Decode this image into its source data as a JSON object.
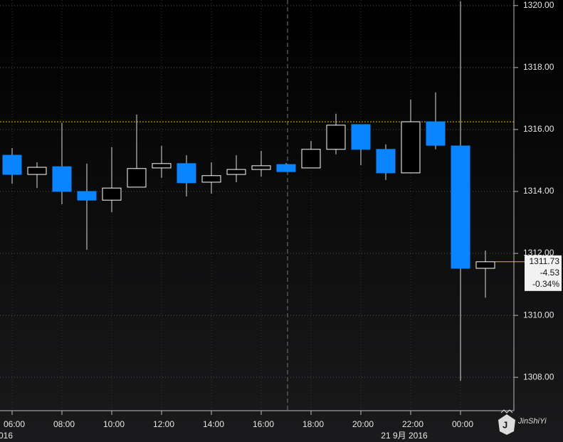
{
  "chart_data": {
    "type": "candlestick",
    "categories": [
      "06:00",
      null,
      "08:00",
      null,
      "10:00",
      null,
      "12:00",
      null,
      "14:00",
      null,
      "16:00",
      null,
      "18:00",
      null,
      "20:00",
      null,
      "22:00",
      null,
      "00:00",
      null
    ],
    "open": [
      1315.17,
      1314.55,
      1314.8,
      1314.0,
      1313.72,
      1314.14,
      1314.76,
      1314.9,
      1314.3,
      1314.55,
      1314.71,
      1314.87,
      1314.76,
      1315.36,
      1316.16,
      1315.36,
      1314.6,
      1316.25,
      1315.47,
      1311.52
    ],
    "high": [
      1315.4,
      1314.94,
      1316.21,
      1314.9,
      1315.43,
      1316.48,
      1315.47,
      1315.17,
      1314.94,
      1315.17,
      1315.31,
      1314.92,
      1315.63,
      1316.51,
      1316.16,
      1315.52,
      1316.97,
      1317.2,
      1320.14,
      1312.09
    ],
    "low": [
      1314.25,
      1314.11,
      1313.59,
      1312.12,
      1313.33,
      1314.14,
      1314.44,
      1313.84,
      1313.93,
      1314.3,
      1314.48,
      1314.64,
      1314.76,
      1315.2,
      1314.85,
      1314.37,
      1314.6,
      1315.36,
      1307.89,
      1310.57
    ],
    "close": [
      1314.55,
      1314.78,
      1314.0,
      1313.72,
      1314.11,
      1314.74,
      1314.9,
      1314.28,
      1314.51,
      1314.71,
      1314.83,
      1314.64,
      1315.36,
      1316.14,
      1315.36,
      1314.6,
      1316.25,
      1315.49,
      1311.52,
      1311.73
    ],
    "colors": {
      "up": "#ffffff",
      "down": "#0a84ff"
    },
    "ylim": [
      1306.97,
      1320.18
    ],
    "yticks": [
      {
        "value": 1308,
        "label": "1308.00"
      },
      {
        "value": 1310,
        "label": "1310.00"
      },
      {
        "value": 1312,
        "label": "1312.00"
      },
      {
        "value": 1314,
        "label": "1314.00"
      },
      {
        "value": 1316,
        "label": "1316.00"
      },
      {
        "value": 1318,
        "label": "1318.00"
      },
      {
        "value": 1320,
        "label": "1320.00"
      }
    ],
    "grid": true,
    "date_labels": [
      "016",
      "21 9月 2016"
    ],
    "reference_line": {
      "value": 1316.25,
      "color": "#f0b400"
    },
    "last_price": {
      "price": 1311.73,
      "change": -4.53,
      "change_pct": {
        "value": -0.34,
        "label": "-0.34%"
      },
      "color": "#f0b400"
    },
    "watermark": "JinShiYi"
  }
}
